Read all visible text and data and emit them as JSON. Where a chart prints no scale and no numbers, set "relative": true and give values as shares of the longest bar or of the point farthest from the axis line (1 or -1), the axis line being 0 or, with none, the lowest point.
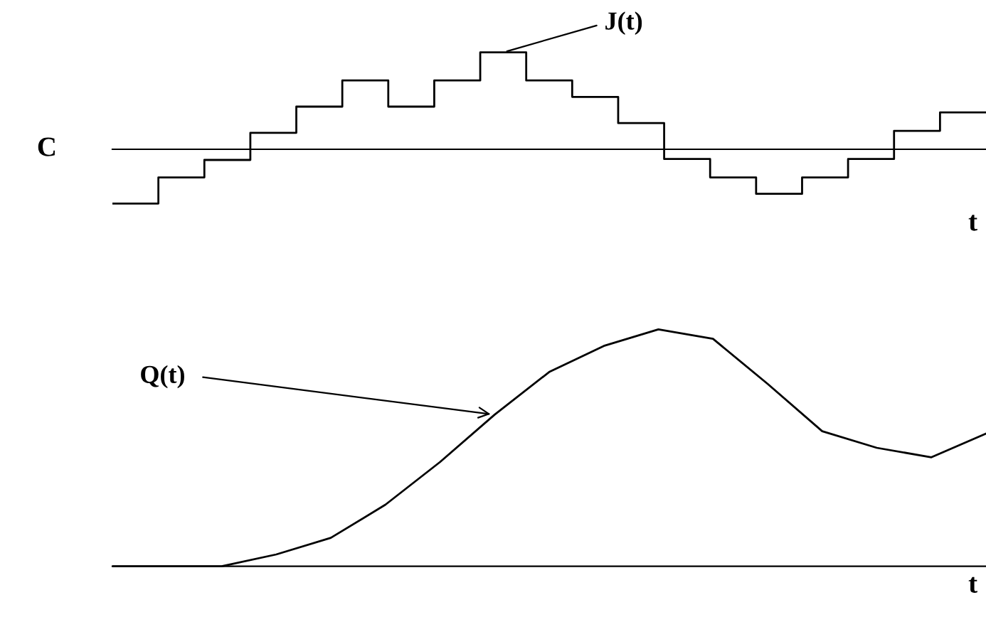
{
  "chart_data": [
    {
      "type": "step",
      "relative": true,
      "ylabel": "C",
      "xlabel": "t",
      "marker": "none",
      "line_style": "solid",
      "categories": [
        null,
        null,
        null,
        null,
        null,
        null,
        null,
        null,
        null,
        null,
        null,
        null,
        null,
        null,
        null,
        null,
        null,
        null,
        null,
        null
      ],
      "series": [
        {
          "name": "J(t)",
          "color": "#000000",
          "values": [
            -0.56,
            -0.29,
            -0.11,
            0.17,
            0.44,
            0.71,
            0.44,
            0.71,
            1,
            0.71,
            0.54,
            0.27,
            -0.1,
            -0.29,
            -0.46,
            -0.29,
            -0.1,
            0.19,
            0.38,
            0.38
          ]
        }
      ]
    },
    {
      "type": "line",
      "relative": true,
      "xlabel": "t",
      "marker": "none",
      "line_style": "solid",
      "categories": [
        null,
        null,
        null,
        null,
        null,
        null,
        null,
        null,
        null,
        null,
        null,
        null,
        null,
        null,
        null,
        null,
        null
      ],
      "series": [
        {
          "name": "Q(t)",
          "color": "#000000",
          "values": [
            0,
            0,
            0,
            0.05,
            0.12,
            0.26,
            0.44,
            0.64,
            0.82,
            0.93,
            1,
            0.96,
            0.77,
            0.57,
            0.5,
            0.46,
            0.56
          ]
        }
      ]
    }
  ]
}
